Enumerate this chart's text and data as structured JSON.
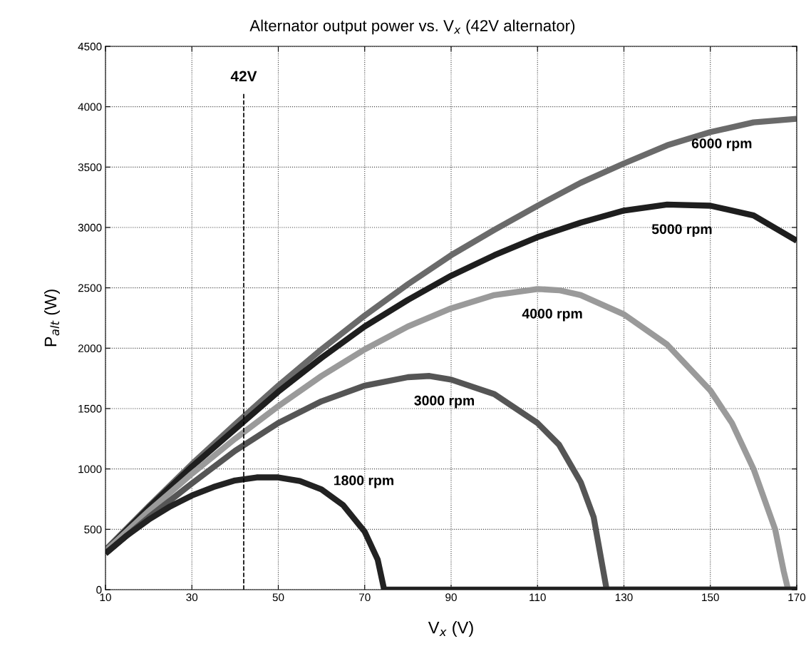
{
  "chart_data": {
    "type": "line",
    "title": "Alternator output power vs. V$_{x}$ (42V alternator)",
    "xlabel": "V$_{x}$ (V)",
    "ylabel": "P$_{alt}$ (W)",
    "xlim": [
      10,
      170
    ],
    "ylim": [
      0,
      4500
    ],
    "xticks": [
      10,
      30,
      50,
      70,
      90,
      110,
      130,
      150,
      170
    ],
    "yticks": [
      0,
      500,
      1000,
      1500,
      2000,
      2500,
      3000,
      3500,
      4000,
      4500
    ],
    "grid": true,
    "legend": false,
    "line_style": "solid",
    "marker": "none",
    "series": [
      {
        "name": "6000 rpm",
        "color": "#6a6a6a",
        "x": [
          10,
          20,
          30,
          40,
          50,
          60,
          70,
          80,
          90,
          100,
          110,
          120,
          130,
          140,
          150,
          160,
          170
        ],
        "values": [
          330,
          690,
          1040,
          1370,
          1690,
          1990,
          2270,
          2530,
          2770,
          2980,
          3180,
          3370,
          3530,
          3680,
          3790,
          3870,
          3900
        ]
      },
      {
        "name": "5000 rpm",
        "color": "#1e1e1e",
        "x": [
          10,
          20,
          30,
          40,
          50,
          60,
          70,
          80,
          90,
          100,
          110,
          120,
          130,
          140,
          150,
          160,
          170
        ],
        "values": [
          320,
          680,
          1020,
          1330,
          1640,
          1920,
          2180,
          2400,
          2600,
          2770,
          2920,
          3040,
          3140,
          3190,
          3180,
          3100,
          2890
        ]
      },
      {
        "name": "4000 rpm",
        "color": "#9a9a9a",
        "x": [
          10,
          20,
          30,
          40,
          50,
          60,
          70,
          80,
          90,
          100,
          110,
          115,
          120,
          130,
          140,
          150,
          155,
          160,
          165,
          167,
          168,
          170
        ],
        "values": [
          320,
          650,
          960,
          1250,
          1520,
          1770,
          1990,
          2180,
          2330,
          2440,
          2490,
          2480,
          2440,
          2280,
          2030,
          1650,
          1380,
          1000,
          500,
          150,
          0,
          0
        ]
      },
      {
        "name": "3000 rpm",
        "color": "#555555",
        "x": [
          10,
          20,
          30,
          40,
          50,
          60,
          70,
          80,
          85,
          90,
          100,
          110,
          115,
          120,
          123,
          125,
          126,
          170
        ],
        "values": [
          300,
          600,
          880,
          1150,
          1380,
          1560,
          1690,
          1760,
          1770,
          1740,
          1620,
          1380,
          1200,
          890,
          600,
          200,
          0,
          0
        ]
      },
      {
        "name": "1800 rpm",
        "color": "#222222",
        "x": [
          10,
          15,
          20,
          25,
          30,
          35,
          40,
          45,
          50,
          55,
          60,
          65,
          70,
          73,
          74.5,
          170
        ],
        "values": [
          300,
          450,
          580,
          690,
          780,
          850,
          905,
          930,
          930,
          900,
          830,
          700,
          480,
          250,
          0,
          0
        ]
      }
    ],
    "ref_lines": [
      {
        "axis": "x",
        "value": 42,
        "label": "42V",
        "color": "#000000",
        "line_style": "dashed"
      }
    ]
  }
}
